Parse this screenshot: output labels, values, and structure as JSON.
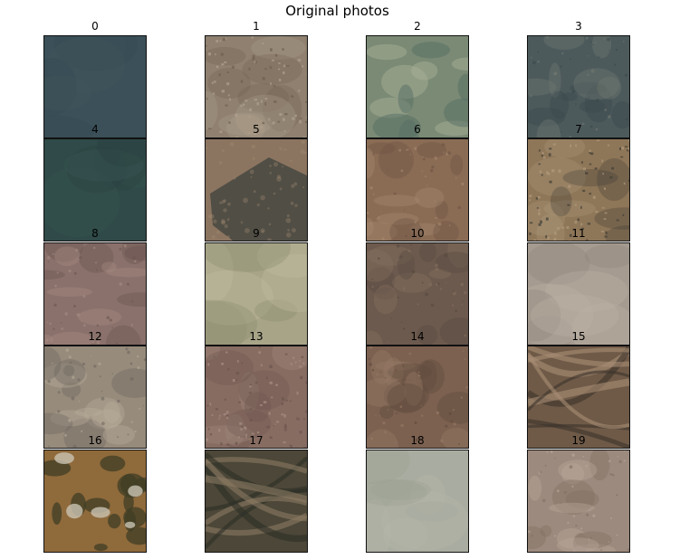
{
  "figure": {
    "title": "Original photos"
  },
  "photos": [
    {
      "label": "0",
      "base": "#3b5058",
      "accent": "#35494f",
      "light": "#43575c",
      "texture": "water"
    },
    {
      "label": "1",
      "base": "#8f8070",
      "accent": "#6f6050",
      "light": "#b0a28f",
      "texture": "town"
    },
    {
      "label": "2",
      "base": "#7a8a75",
      "accent": "#566e64",
      "light": "#a8ad95",
      "texture": "fields"
    },
    {
      "label": "3",
      "base": "#4d5a5c",
      "accent": "#39474b",
      "light": "#6f7770",
      "texture": "mottled"
    },
    {
      "label": "4",
      "base": "#2f4a48",
      "accent": "#2a4341",
      "light": "#3a5654",
      "texture": "water"
    },
    {
      "label": "5",
      "base": "#8c7560",
      "accent": "#4a4a42",
      "light": "#a48c72",
      "texture": "forest-block"
    },
    {
      "label": "6",
      "base": "#8a6c55",
      "accent": "#6e5443",
      "light": "#a6896f",
      "texture": "dry"
    },
    {
      "label": "7",
      "base": "#8e7658",
      "accent": "#3f3d35",
      "light": "#b09a7d",
      "texture": "village"
    },
    {
      "label": "8",
      "base": "#8a716b",
      "accent": "#6a564f",
      "light": "#a58c82",
      "texture": "dry"
    },
    {
      "label": "9",
      "base": "#a7a488",
      "accent": "#8c8c6c",
      "light": "#c2bea0",
      "texture": "smooth"
    },
    {
      "label": "10",
      "base": "#6d5a4e",
      "accent": "#574940",
      "light": "#85705f",
      "texture": "mottled"
    },
    {
      "label": "11",
      "base": "#a59b90",
      "accent": "#8e857a",
      "light": "#bcb2a5",
      "texture": "smooth"
    },
    {
      "label": "12",
      "base": "#978b7c",
      "accent": "#6f675f",
      "light": "#b8ad9b",
      "texture": "mottled"
    },
    {
      "label": "13",
      "base": "#876c62",
      "accent": "#6b544d",
      "light": "#a68f82",
      "texture": "town"
    },
    {
      "label": "14",
      "base": "#7c6150",
      "accent": "#5f4a3d",
      "light": "#977a66",
      "texture": "dry"
    },
    {
      "label": "15",
      "base": "#6f5a48",
      "accent": "#3c332c",
      "light": "#a88e75",
      "texture": "ridges"
    },
    {
      "label": "16",
      "base": "#8f6a3b",
      "accent": "#3f3d25",
      "light": "#c9c3b3",
      "texture": "patches"
    },
    {
      "label": "17",
      "base": "#4c4738",
      "accent": "#2d2e26",
      "light": "#8a7a63",
      "texture": "ridges"
    },
    {
      "label": "18",
      "base": "#a9aca0",
      "accent": "#9ba093",
      "light": "#b6b8ad",
      "texture": "smooth"
    },
    {
      "label": "19",
      "base": "#9d8a7e",
      "accent": "#7f6e62",
      "light": "#b8a89b",
      "texture": "mottled"
    }
  ]
}
